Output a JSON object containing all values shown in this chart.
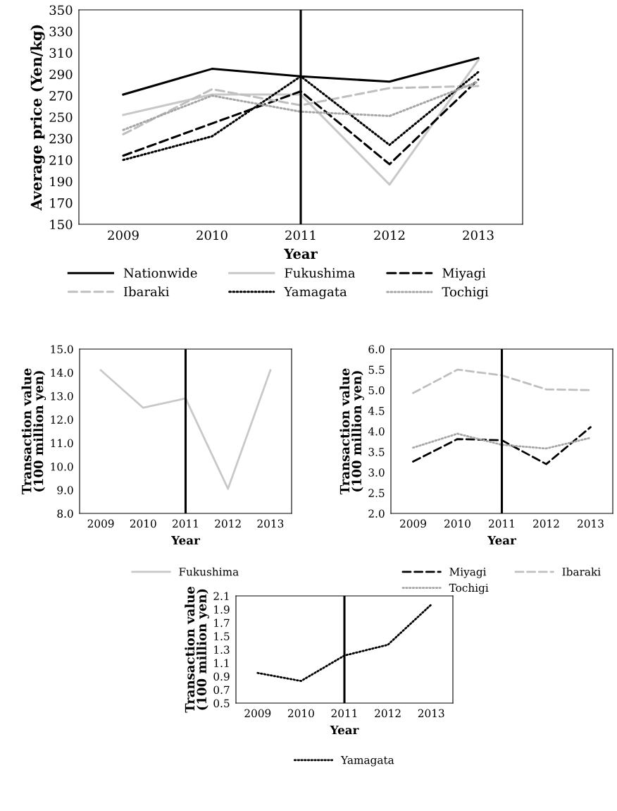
{
  "chart_data": [
    {
      "type": "line",
      "xlabel": "Year",
      "ylabel": "Average price (Yen/kg)",
      "categories": [
        "2009",
        "2010",
        "2011",
        "2012",
        "2013"
      ],
      "ylim": [
        150,
        350
      ],
      "yticks": [
        150,
        170,
        190,
        210,
        230,
        250,
        270,
        290,
        310,
        330,
        350
      ],
      "grid": false,
      "legend": "bottom",
      "marker": "none",
      "ref_lines": [
        {
          "axis": "x",
          "value": "2011",
          "color": "#000000",
          "line_style": "solid"
        }
      ],
      "series": [
        {
          "name": "Nationwide",
          "color": "#000000",
          "line_style": "solid",
          "values": [
            271,
            295,
            288,
            283,
            305
          ]
        },
        {
          "name": "Fukushima",
          "color": "#c8c8c8",
          "line_style": "solid",
          "values": [
            252,
            271,
            271,
            187,
            303
          ]
        },
        {
          "name": "Miyagi",
          "color": "#000000",
          "line_style": "dashed",
          "values": [
            214,
            244,
            274,
            206,
            285
          ]
        },
        {
          "name": "Ibaraki",
          "color": "#bfbfbf",
          "line_style": "dashed",
          "values": [
            234,
            276,
            261,
            277,
            279
          ]
        },
        {
          "name": "Yamagata",
          "color": "#000000",
          "line_style": "dotted",
          "values": [
            210,
            232,
            288,
            224,
            292
          ]
        },
        {
          "name": "Tochigi",
          "color": "#a6a6a6",
          "line_style": "dotted",
          "values": [
            238,
            270,
            255,
            251,
            283
          ]
        }
      ]
    },
    {
      "type": "line",
      "xlabel": "Year",
      "ylabel": "Transaction value\n(100 million yen)",
      "categories": [
        "2009",
        "2010",
        "2011",
        "2012",
        "2013"
      ],
      "ylim": [
        8,
        15
      ],
      "yticks": [
        {
          "value": 8,
          "label": "8.0"
        },
        {
          "value": 9,
          "label": "9.0"
        },
        {
          "value": 10,
          "label": "10.0"
        },
        {
          "value": 11,
          "label": "11.0"
        },
        {
          "value": 12,
          "label": "12.0"
        },
        {
          "value": 13,
          "label": "13.0"
        },
        {
          "value": 14,
          "label": "14.0"
        },
        {
          "value": 15,
          "label": "15.0"
        }
      ],
      "grid": false,
      "legend": "bottom",
      "marker": "none",
      "ref_lines": [
        {
          "axis": "x",
          "value": "2011",
          "color": "#000000",
          "line_style": "solid"
        }
      ],
      "series": [
        {
          "name": "Fukushima",
          "color": "#c8c8c8",
          "line_style": "solid",
          "values": [
            14.1,
            12.5,
            12.9,
            9.05,
            14.1
          ]
        }
      ]
    },
    {
      "type": "line",
      "xlabel": "Year",
      "ylabel": "Transaction value\n(100 million yen)",
      "categories": [
        "2009",
        "2010",
        "2011",
        "2012",
        "2013"
      ],
      "ylim": [
        2,
        6
      ],
      "yticks": [
        {
          "value": 2,
          "label": "2.0"
        },
        2.5,
        {
          "value": 3,
          "label": "3.0"
        },
        3.5,
        {
          "value": 4,
          "label": "4.0"
        },
        4.5,
        {
          "value": 5,
          "label": "5.0"
        },
        5.5,
        {
          "value": 6,
          "label": "6.0"
        }
      ],
      "grid": false,
      "legend": "bottom",
      "marker": "none",
      "ref_lines": [
        {
          "axis": "x",
          "value": "2011",
          "color": "#000000",
          "line_style": "solid"
        }
      ],
      "series": [
        {
          "name": "Miyagi",
          "color": "#000000",
          "line_style": "dashed",
          "values": [
            3.26,
            3.81,
            3.78,
            3.2,
            4.1
          ]
        },
        {
          "name": "Ibaraki",
          "color": "#bfbfbf",
          "line_style": "dashed",
          "values": [
            4.93,
            5.5,
            5.36,
            5.02,
            5.0
          ]
        },
        {
          "name": "Tochigi",
          "color": "#a6a6a6",
          "line_style": "dotted",
          "values": [
            3.6,
            3.94,
            3.67,
            3.58,
            3.84
          ]
        }
      ]
    },
    {
      "type": "line",
      "xlabel": "Year",
      "ylabel": "Transaction value\n(100 million yen)",
      "categories": [
        "2009",
        "2010",
        "2011",
        "2012",
        "2013"
      ],
      "ylim": [
        0.5,
        2.1
      ],
      "yticks": [
        0.5,
        0.7,
        0.9,
        1.1,
        1.3,
        1.5,
        1.7,
        1.9,
        2.1
      ],
      "grid": false,
      "legend": "bottom",
      "marker": "none",
      "ref_lines": [
        {
          "axis": "x",
          "value": "2011",
          "color": "#000000",
          "line_style": "solid"
        }
      ],
      "series": [
        {
          "name": "Yamagata",
          "color": "#000000",
          "line_style": "dotted",
          "values": [
            0.95,
            0.83,
            1.21,
            1.37,
            1.97
          ]
        }
      ]
    }
  ]
}
